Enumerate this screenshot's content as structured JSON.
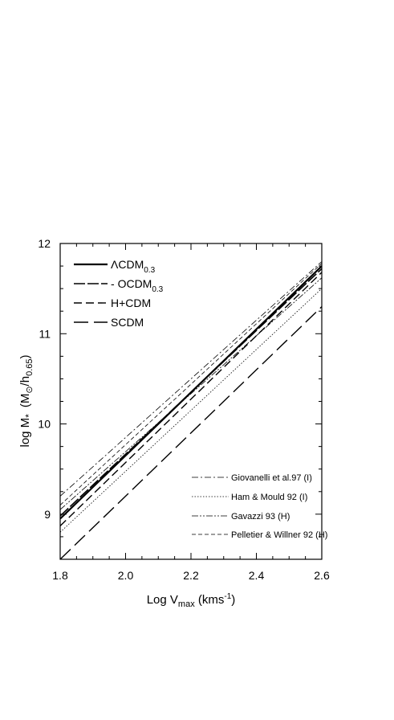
{
  "chart_data": {
    "type": "line",
    "xlabel": {
      "main": "Log V",
      "sub": "max",
      "units_pre": " (kms",
      "units_sup": "-1",
      "units_post": ")"
    },
    "ylabel": {
      "main": "log M",
      "star": "*",
      "units_pre": "(M",
      "units_sub1": "⊙",
      "units_mid": "/h",
      "units_sub2": "0.65",
      "units_post": ")"
    },
    "xlim": [
      1.8,
      2.6
    ],
    "ylim": [
      8.5,
      12
    ],
    "xticks": [
      "1.8",
      "2.0",
      "2.2",
      "2.4",
      "2.6"
    ],
    "yticks": [
      "9",
      "10",
      "11",
      "12"
    ],
    "legend_top": [
      {
        "label": "ΛCDM",
        "sub": "0.3",
        "prefix": ""
      },
      {
        "label": "OCDM",
        "sub": "0.3",
        "prefix": "- "
      },
      {
        "label": "H+CDM",
        "sub": "",
        "prefix": ""
      },
      {
        "label": "SCDM",
        "sub": "",
        "prefix": ""
      }
    ],
    "legend_bottom": [
      {
        "label": "Giovanelli et al.97 (I)"
      },
      {
        "label": "Ham & Mould 92 (I)"
      },
      {
        "label": "Gavazzi 93 (H)"
      },
      {
        "label": "Pelletier & Willner 92 (H)"
      }
    ],
    "series": [
      {
        "name": "ΛCDM0.3",
        "dash": "",
        "width": 2.2,
        "x": [
          1.8,
          2.6
        ],
        "y": [
          8.95,
          11.75
        ]
      },
      {
        "name": "OCDM0.3",
        "dash": "14,3",
        "width": 1.6,
        "x": [
          1.8,
          2.6
        ],
        "y": [
          8.98,
          11.72
        ]
      },
      {
        "name": "H+CDM",
        "dash": "10,5",
        "width": 1.4,
        "x": [
          1.8,
          2.6
        ],
        "y": [
          8.87,
          11.68
        ]
      },
      {
        "name": "SCDM",
        "dash": "18,7",
        "width": 1.4,
        "x": [
          1.8,
          2.6
        ],
        "y": [
          8.5,
          11.3
        ]
      },
      {
        "name": "Giovanelli et al.97 (I)",
        "dash": "8,3,2,3",
        "width": 0.8,
        "x": [
          1.8,
          2.6
        ],
        "y": [
          9.2,
          11.8
        ]
      },
      {
        "name": "Ham & Mould 92 (I)",
        "dash": "1.5,2",
        "width": 0.8,
        "x": [
          1.8,
          2.6
        ],
        "y": [
          8.8,
          11.5
        ]
      },
      {
        "name": "Gavazzi 93 (H)",
        "dash": "8,2,2,2,2,2",
        "width": 0.8,
        "x": [
          1.8,
          2.6
        ],
        "y": [
          9.05,
          11.62
        ]
      },
      {
        "name": "Pelletier & Willner 92 (H)",
        "dash": "5,3",
        "width": 0.8,
        "x": [
          1.8,
          2.6
        ],
        "y": [
          9.1,
          11.78
        ]
      }
    ]
  }
}
